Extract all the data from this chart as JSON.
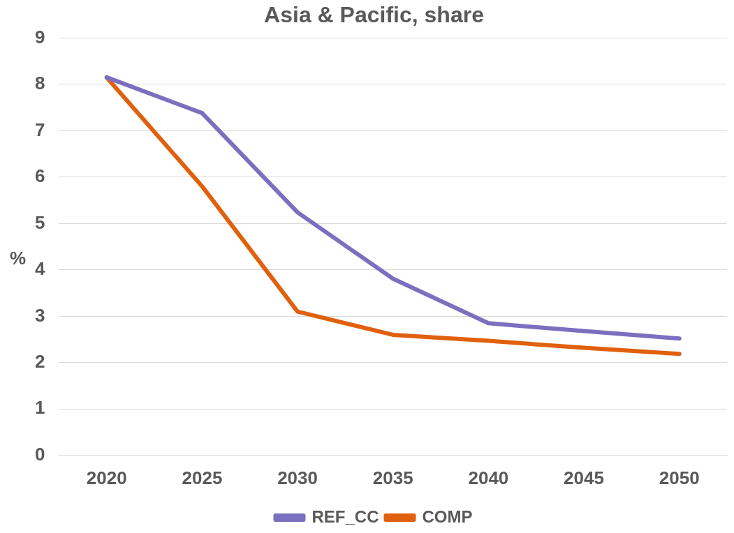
{
  "chart_data": {
    "type": "line",
    "title": "Asia & Pacific, share",
    "ylabel": "%",
    "categories": [
      "2020",
      "2025",
      "2030",
      "2035",
      "2040",
      "2045",
      "2050"
    ],
    "series": [
      {
        "name": "REF_CC",
        "color": "#7b6fbf",
        "values": [
          8.15,
          7.38,
          5.24,
          3.81,
          2.85,
          2.68,
          2.52
        ]
      },
      {
        "name": "COMP",
        "color": "#e0600e",
        "values": [
          8.15,
          5.8,
          3.1,
          2.6,
          2.47,
          2.32,
          2.19
        ]
      }
    ],
    "ylim": [
      0,
      9
    ],
    "yticks": [
      0,
      1,
      2,
      3,
      4,
      5,
      6,
      7,
      8,
      9
    ],
    "grid": "y",
    "legend": "bottom",
    "marker": "none",
    "line_style": "solid"
  }
}
